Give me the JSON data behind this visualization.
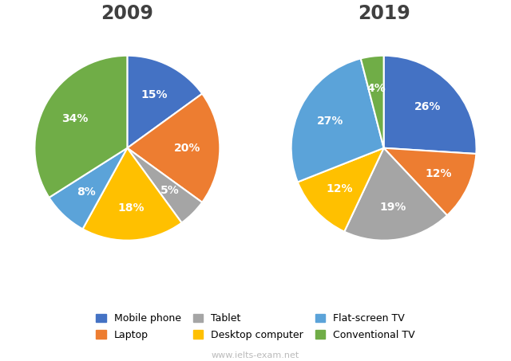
{
  "title_2009": "2009",
  "title_2019": "2019",
  "title_color": "#404040",
  "colors": {
    "Mobile phone": "#4472C4",
    "Laptop": "#ED7D31",
    "Tablet": "#A5A5A5",
    "Desktop computer": "#FFC000",
    "Flat-screen TV": "#5BA3D9",
    "Conventional TV": "#70AD47"
  },
  "data_2009": {
    "Mobile phone": 15,
    "Laptop": 20,
    "Tablet": 5,
    "Desktop computer": 18,
    "Flat-screen TV": 8,
    "Conventional TV": 34
  },
  "data_2019": {
    "Mobile phone": 26,
    "Laptop": 12,
    "Tablet": 19,
    "Desktop computer": 12,
    "Flat-screen TV": 27,
    "Conventional TV": 4
  },
  "watermark": "www.ielts-exam.net",
  "legend_labels": [
    "Mobile phone",
    "Laptop",
    "Tablet",
    "Desktop computer",
    "Flat-screen TV",
    "Conventional TV"
  ]
}
